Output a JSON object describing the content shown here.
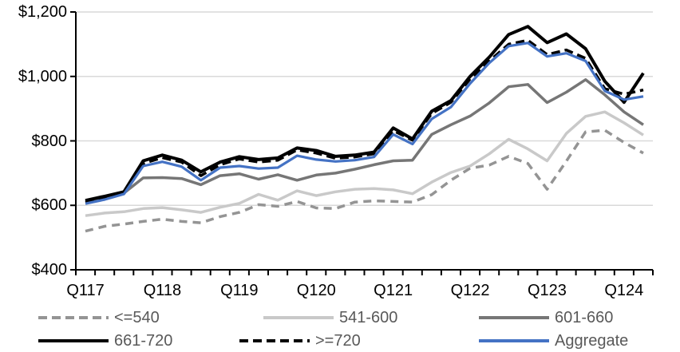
{
  "chart_data": {
    "type": "line",
    "title": "",
    "grid": "horizontal",
    "legend_position": "bottom",
    "categories": [
      "Q1 2017",
      "Q2 2017",
      "Q3 2017",
      "Q4 2017",
      "Q1 2018",
      "Q2 2018",
      "Q3 2018",
      "Q4 2018",
      "Q1 2019",
      "Q2 2019",
      "Q3 2019",
      "Q4 2019",
      "Q1 2020",
      "Q2 2020",
      "Q3 2020",
      "Q4 2020",
      "Q1 2021",
      "Q2 2021",
      "Q3 2021",
      "Q4 2021",
      "Q1 2022",
      "Q2 2022",
      "Q3 2022",
      "Q4 2022",
      "Q1 2023",
      "Q2 2023",
      "Q3 2023",
      "Q4 2023",
      "Q1 2024",
      "Q2 2024"
    ],
    "x_axis": {
      "tick_labels": [
        "Q117",
        "Q118",
        "Q119",
        "Q120",
        "Q121",
        "Q122",
        "Q123",
        "Q124"
      ],
      "label_every_n_categories": 4
    },
    "y_axis": {
      "ylim": [
        400,
        1200
      ],
      "step": 200,
      "tick_labels": [
        "$400",
        "$600",
        "$800",
        "$1,000",
        "$1,200"
      ],
      "format": "USD"
    },
    "colors": {
      "gridline": "#D9D9D9",
      "axis": "#000000",
      "tick_text": "#000000",
      "legend_text": "#595959"
    },
    "series": [
      {
        "name": "<=540",
        "color": "#949494",
        "style": "dashed",
        "values": [
          520,
          535,
          542,
          550,
          557,
          550,
          546,
          565,
          578,
          602,
          597,
          612,
          592,
          590,
          610,
          614,
          612,
          610,
          633,
          678,
          715,
          725,
          752,
          730,
          650,
          737,
          828,
          833,
          795,
          762
        ]
      },
      {
        "name": "541-600",
        "color": "#C9C9C9",
        "style": "solid",
        "values": [
          568,
          576,
          580,
          590,
          593,
          586,
          578,
          594,
          606,
          634,
          616,
          645,
          630,
          642,
          650,
          652,
          648,
          636,
          672,
          702,
          722,
          760,
          805,
          775,
          738,
          823,
          876,
          890,
          856,
          818
        ]
      },
      {
        "name": "601-660",
        "color": "#767676",
        "style": "solid",
        "values": [
          610,
          622,
          638,
          685,
          686,
          683,
          664,
          692,
          698,
          681,
          695,
          678,
          694,
          700,
          712,
          726,
          738,
          740,
          820,
          850,
          877,
          918,
          968,
          975,
          919,
          951,
          990,
          943,
          890,
          850
        ]
      },
      {
        "name": "661-720",
        "color": "#000000",
        "style": "solid",
        "values": [
          615,
          628,
          642,
          738,
          756,
          740,
          704,
          734,
          751,
          742,
          747,
          778,
          770,
          752,
          756,
          765,
          840,
          806,
          892,
          925,
          1000,
          1060,
          1130,
          1155,
          1105,
          1132,
          1086,
          985,
          920,
          1010
        ]
      },
      {
        "name": ">=720",
        "color": "#000000",
        "style": "dashed",
        "values": [
          610,
          622,
          638,
          730,
          748,
          734,
          692,
          726,
          744,
          734,
          740,
          772,
          762,
          746,
          750,
          760,
          832,
          802,
          885,
          920,
          992,
          1048,
          1100,
          1112,
          1068,
          1082,
          1056,
          962,
          945,
          958
        ]
      },
      {
        "name": "Aggregate",
        "color": "#4472C4",
        "style": "solid",
        "values": [
          605,
          618,
          635,
          722,
          735,
          720,
          678,
          717,
          722,
          714,
          717,
          754,
          742,
          736,
          740,
          750,
          820,
          790,
          868,
          905,
          978,
          1042,
          1094,
          1104,
          1062,
          1072,
          1048,
          955,
          928,
          938
        ]
      }
    ]
  }
}
